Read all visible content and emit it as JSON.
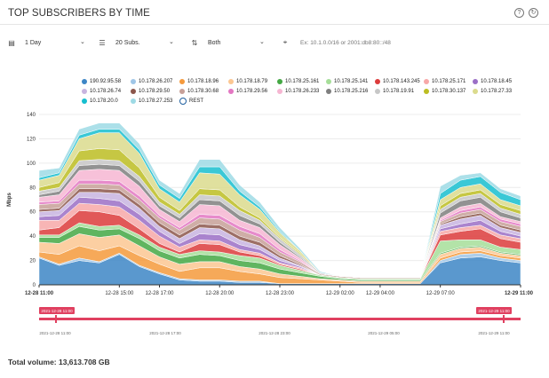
{
  "header": {
    "title": "TOP SUBSCRIBERS BY TIME",
    "help_icon": "help-circle-icon",
    "refresh_icon": "refresh-icon"
  },
  "controls": {
    "period": "1 Day",
    "top": "20 Subs.",
    "direction": "Both",
    "filter_placeholder": "Ex: 10.1.0.0/16 or 2001:db8:80::/48"
  },
  "footer": {
    "total_label": "Total volume: 13,613.708 GB"
  },
  "navigator": {
    "start_flag": "2021-12-28 11:00",
    "end_flag": "2021-12-29 11:00",
    "ticks": [
      "2021-12-28 11:00",
      "2021-12-28 17:00",
      "2021-12-28 23:00",
      "2021-12-29 05:00",
      "2021-12-29 11:00"
    ],
    "color": "#e04060"
  },
  "chart_data": {
    "type": "area",
    "stacked": true,
    "ylabel": "Mbps",
    "ylim": [
      0,
      140
    ],
    "yticks": [
      0,
      20,
      40,
      60,
      80,
      100,
      120,
      140
    ],
    "xlim": [
      0,
      24
    ],
    "xticks": [
      {
        "x": 0,
        "label": "12-28 11:00",
        "bold": true
      },
      {
        "x": 4,
        "label": "12-28 15:00"
      },
      {
        "x": 6,
        "label": "12-28 17:00"
      },
      {
        "x": 9,
        "label": "12-28 20:00"
      },
      {
        "x": 12,
        "label": "12-28 23:00"
      },
      {
        "x": 15,
        "label": "12-29 02:00"
      },
      {
        "x": 17,
        "label": "12-29 04:00"
      },
      {
        "x": 20,
        "label": "12-29 07:00"
      },
      {
        "x": 24,
        "label": "12-29 11:00",
        "bold": true
      }
    ],
    "x": [
      0,
      1,
      2,
      3,
      4,
      5,
      6,
      7,
      8,
      9,
      10,
      11,
      12,
      13,
      14,
      15,
      16,
      17,
      18,
      19,
      20,
      21,
      22,
      23,
      24
    ],
    "series": [
      {
        "name": "190.92.95.58",
        "color": "#3d86c6",
        "values": [
          22,
          16,
          20,
          18,
          25,
          15,
          9,
          4,
          3,
          3,
          2,
          2,
          1,
          1,
          1,
          1,
          1,
          1,
          1,
          1,
          18,
          22,
          23,
          20,
          18
        ]
      },
      {
        "name": "10.178.26.207",
        "color": "#9fc6e7",
        "values": [
          1,
          1,
          2,
          1,
          1,
          1,
          1,
          1,
          1,
          1,
          1,
          1,
          0,
          0,
          0,
          0,
          0,
          0,
          0,
          0,
          2,
          3,
          3,
          2,
          2
        ]
      },
      {
        "name": "10.178.18.96",
        "color": "#f59a3c",
        "values": [
          4,
          8,
          10,
          9,
          6,
          8,
          7,
          6,
          10,
          10,
          8,
          6,
          5,
          4,
          3,
          2,
          1,
          1,
          1,
          1,
          2,
          2,
          2,
          2,
          2
        ]
      },
      {
        "name": "10.178.18.79",
        "color": "#fcc792",
        "values": [
          8,
          9,
          10,
          11,
          9,
          8,
          6,
          6,
          5,
          5,
          4,
          4,
          3,
          2,
          1,
          1,
          1,
          1,
          1,
          1,
          3,
          3,
          3,
          2,
          2
        ]
      },
      {
        "name": "10.178.25.161",
        "color": "#44a844",
        "values": [
          4,
          5,
          6,
          6,
          5,
          6,
          5,
          5,
          6,
          5,
          5,
          5,
          4,
          3,
          2,
          1,
          1,
          1,
          1,
          1,
          1,
          1,
          1,
          1,
          1
        ]
      },
      {
        "name": "10.178.25.141",
        "color": "#a6de99",
        "values": [
          2,
          2,
          3,
          3,
          3,
          3,
          3,
          3,
          3,
          3,
          4,
          4,
          3,
          2,
          1,
          1,
          1,
          1,
          1,
          1,
          10,
          6,
          5,
          4,
          4
        ]
      },
      {
        "name": "10.178.143.245",
        "color": "#dc3b3b",
        "values": [
          4,
          6,
          10,
          12,
          8,
          5,
          3,
          2,
          6,
          6,
          3,
          2,
          1,
          1,
          0,
          0,
          0,
          0,
          0,
          0,
          5,
          7,
          9,
          7,
          6
        ]
      },
      {
        "name": "10.178.25.171",
        "color": "#f7a8a8",
        "values": [
          8,
          6,
          6,
          6,
          7,
          7,
          6,
          4,
          3,
          3,
          2,
          2,
          1,
          1,
          0,
          0,
          0,
          0,
          0,
          0,
          3,
          3,
          3,
          3,
          3
        ]
      },
      {
        "name": "10.178.18.45",
        "color": "#9b6fc6",
        "values": [
          3,
          4,
          5,
          5,
          5,
          5,
          4,
          3,
          5,
          5,
          4,
          3,
          2,
          1,
          0,
          0,
          0,
          0,
          0,
          0,
          2,
          3,
          4,
          3,
          2
        ]
      },
      {
        "name": "10.178.26.74",
        "color": "#c8b4e0",
        "values": [
          4,
          4,
          4,
          5,
          6,
          5,
          4,
          4,
          5,
          5,
          4,
          3,
          2,
          1,
          0,
          0,
          0,
          0,
          0,
          0,
          3,
          4,
          4,
          3,
          3
        ]
      },
      {
        "name": "10.178.29.50",
        "color": "#8c564b",
        "values": [
          2,
          2,
          3,
          3,
          3,
          3,
          3,
          3,
          3,
          3,
          3,
          3,
          2,
          1,
          0,
          0,
          0,
          0,
          0,
          0,
          1,
          2,
          2,
          2,
          2
        ]
      },
      {
        "name": "10.178.30.68",
        "color": "#c7a098",
        "values": [
          4,
          4,
          4,
          4,
          4,
          4,
          4,
          4,
          5,
          5,
          5,
          4,
          3,
          2,
          1,
          1,
          1,
          1,
          1,
          1,
          2,
          3,
          3,
          3,
          3
        ]
      },
      {
        "name": "10.178.29.56",
        "color": "#e377c2",
        "values": [
          2,
          2,
          3,
          3,
          3,
          3,
          2,
          2,
          3,
          3,
          3,
          3,
          2,
          1,
          0,
          0,
          0,
          0,
          0,
          0,
          1,
          2,
          2,
          2,
          2
        ]
      },
      {
        "name": "10.178.26.233",
        "color": "#f6b6d2",
        "values": [
          4,
          5,
          8,
          9,
          9,
          8,
          5,
          5,
          8,
          8,
          5,
          5,
          4,
          2,
          0,
          0,
          0,
          0,
          0,
          0,
          2,
          3,
          3,
          2,
          2
        ]
      },
      {
        "name": "10.178.25.216",
        "color": "#7f7f7f",
        "values": [
          2,
          3,
          4,
          4,
          4,
          4,
          3,
          3,
          4,
          4,
          4,
          3,
          2,
          1,
          0,
          0,
          0,
          0,
          0,
          0,
          4,
          5,
          5,
          4,
          3
        ]
      },
      {
        "name": "10.178.19.91",
        "color": "#c7c7c7",
        "values": [
          3,
          3,
          4,
          4,
          4,
          4,
          3,
          3,
          4,
          4,
          4,
          3,
          3,
          2,
          1,
          0,
          0,
          0,
          0,
          0,
          3,
          3,
          3,
          3,
          3
        ]
      },
      {
        "name": "10.178.30.137",
        "color": "#bcbd22",
        "values": [
          3,
          4,
          8,
          9,
          9,
          7,
          4,
          3,
          5,
          5,
          3,
          2,
          1,
          1,
          0,
          0,
          0,
          0,
          0,
          0,
          3,
          3,
          3,
          3,
          3
        ]
      },
      {
        "name": "10.178.27.33",
        "color": "#dbdb8d",
        "values": [
          6,
          6,
          10,
          13,
          14,
          12,
          7,
          7,
          13,
          13,
          10,
          7,
          4,
          2,
          0,
          0,
          0,
          0,
          0,
          0,
          5,
          5,
          5,
          4,
          4
        ]
      },
      {
        "name": "10.178.20.0",
        "color": "#17becf",
        "values": [
          2,
          2,
          3,
          3,
          3,
          3,
          3,
          3,
          5,
          6,
          3,
          2,
          1,
          0,
          0,
          0,
          0,
          0,
          0,
          0,
          5,
          6,
          6,
          6,
          5
        ]
      },
      {
        "name": "10.178.27.253",
        "color": "#9edae5",
        "values": [
          6,
          4,
          5,
          5,
          5,
          5,
          4,
          4,
          6,
          6,
          5,
          4,
          3,
          2,
          1,
          0,
          0,
          0,
          0,
          0,
          6,
          4,
          3,
          3,
          3
        ]
      },
      {
        "name": "REST",
        "color": "#ffffff",
        "outline": "#1f5f9f",
        "values": [
          0,
          0,
          0,
          0,
          0,
          0,
          0,
          0,
          0,
          0,
          0,
          0,
          0,
          0,
          0,
          0,
          0,
          0,
          0,
          0,
          0,
          0,
          0,
          0,
          0
        ]
      }
    ]
  }
}
